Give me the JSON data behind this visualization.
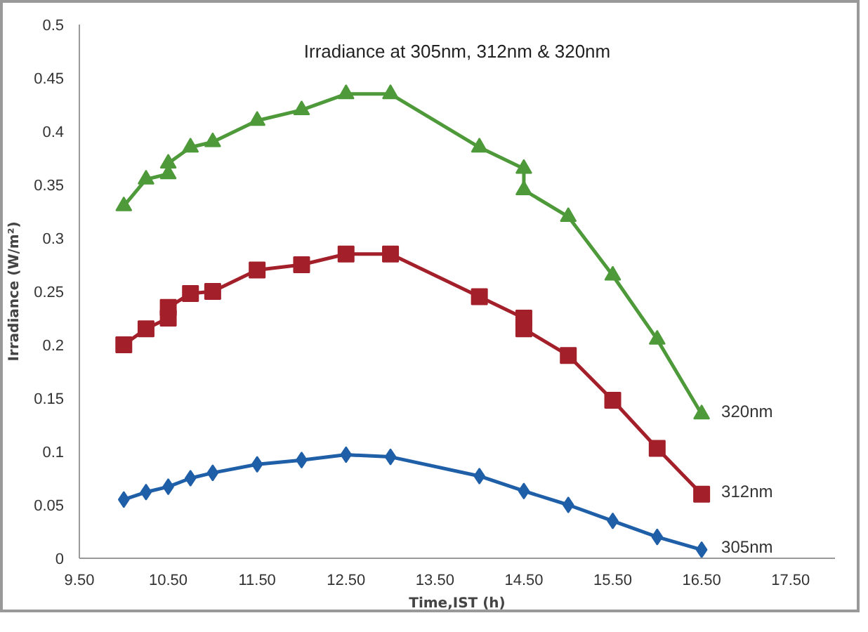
{
  "chart_data": {
    "type": "line",
    "title": "Irradiance at 305nm, 312nm & 320nm",
    "xlabel": "Time,IST (h)",
    "ylabel": "Irradiance (W/m²)",
    "xlim": [
      9.5,
      18
    ],
    "xticks": [
      {
        "value": 9.5,
        "label": "9.50"
      },
      {
        "value": 10.5,
        "label": "10.50"
      },
      {
        "value": 11.5,
        "label": "11.50"
      },
      {
        "value": 12.5,
        "label": "12.50"
      },
      {
        "value": 13.5,
        "label": "13.50"
      },
      {
        "value": 14.5,
        "label": "14.50"
      },
      {
        "value": 15.5,
        "label": "15.50"
      },
      {
        "value": 16.5,
        "label": "16.50"
      },
      {
        "value": 17.5,
        "label": "17.50"
      }
    ],
    "ylim": [
      0,
      0.5
    ],
    "yticks": [
      0,
      0.05,
      0.1,
      0.15,
      0.2,
      0.25,
      0.3,
      0.35,
      0.4,
      0.45,
      0.5
    ],
    "grid": false,
    "series": [
      {
        "name": "320nm",
        "color": "#4e9a3a",
        "marker": "triangle",
        "x": [
          10,
          10.25,
          10.5,
          10.5,
          10.75,
          11,
          11.5,
          12,
          12.5,
          13,
          14,
          14.5,
          14.5,
          15,
          15.5,
          16,
          16.5
        ],
        "values": [
          0.33,
          0.355,
          0.36,
          0.37,
          0.385,
          0.39,
          0.41,
          0.42,
          0.435,
          0.435,
          0.385,
          0.365,
          0.345,
          0.32,
          0.265,
          0.205,
          0.135
        ]
      },
      {
        "name": "312nm",
        "color": "#a3202a",
        "marker": "square",
        "x": [
          10,
          10.25,
          10.5,
          10.5,
          10.75,
          11,
          11.5,
          12,
          12.5,
          13,
          14,
          14.5,
          14.5,
          15,
          15.5,
          16,
          16.5
        ],
        "values": [
          0.2,
          0.215,
          0.225,
          0.235,
          0.248,
          0.25,
          0.27,
          0.275,
          0.285,
          0.285,
          0.245,
          0.225,
          0.215,
          0.19,
          0.148,
          0.103,
          0.06
        ]
      },
      {
        "name": "305nm",
        "color": "#1f5fa8",
        "marker": "diamond",
        "x": [
          10,
          10.25,
          10.5,
          10.75,
          11,
          11.5,
          12,
          12.5,
          13,
          14,
          14.5,
          15,
          15.5,
          16,
          16.5
        ],
        "values": [
          0.055,
          0.062,
          0.067,
          0.075,
          0.08,
          0.088,
          0.092,
          0.097,
          0.095,
          0.077,
          0.063,
          0.05,
          0.035,
          0.02,
          0.008
        ]
      }
    ]
  }
}
